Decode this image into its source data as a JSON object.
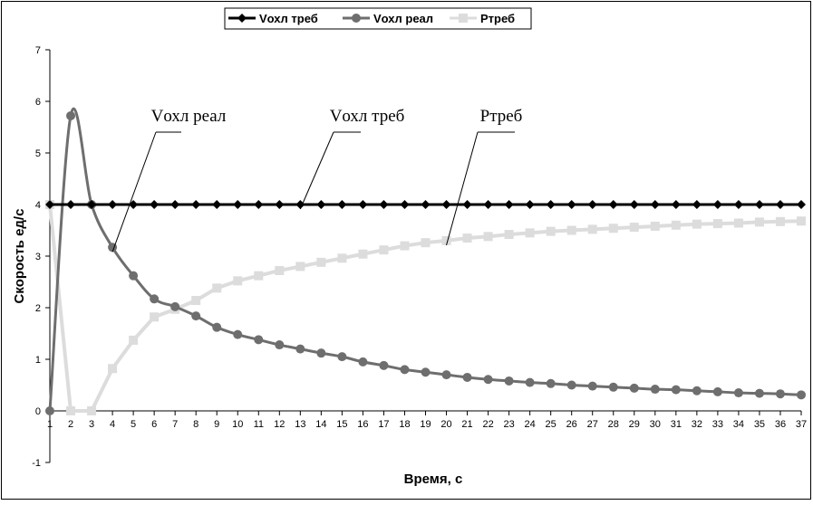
{
  "chart_data": {
    "type": "line",
    "xlabel": "Время, с",
    "ylabel": "Скорость ед/с",
    "ylim": [
      -1,
      7
    ],
    "yticks": [
      -1,
      0,
      1,
      2,
      3,
      4,
      5,
      6,
      7
    ],
    "x": [
      1,
      2,
      3,
      4,
      5,
      6,
      7,
      8,
      9,
      10,
      11,
      12,
      13,
      14,
      15,
      16,
      17,
      18,
      19,
      20,
      21,
      22,
      23,
      24,
      25,
      26,
      27,
      28,
      29,
      30,
      31,
      32,
      33,
      34,
      35,
      36,
      37
    ],
    "grid": false,
    "legend_position": "top",
    "series": [
      {
        "name": "Vохл треб",
        "color": "#000000",
        "marker": "diamond",
        "values": [
          4,
          4,
          4,
          4,
          4,
          4,
          4,
          4,
          4,
          4,
          4,
          4,
          4,
          4,
          4,
          4,
          4,
          4,
          4,
          4,
          4,
          4,
          4,
          4,
          4,
          4,
          4,
          4,
          4,
          4,
          4,
          4,
          4,
          4,
          4,
          4,
          4
        ]
      },
      {
        "name": "Vохл реал",
        "color": "#6e6e6e",
        "marker": "circle",
        "values": [
          0,
          5.72,
          4.0,
          3.17,
          2.62,
          2.17,
          2.02,
          1.84,
          1.62,
          1.48,
          1.38,
          1.28,
          1.2,
          1.12,
          1.05,
          0.95,
          0.88,
          0.8,
          0.75,
          0.7,
          0.65,
          0.61,
          0.58,
          0.55,
          0.53,
          0.5,
          0.48,
          0.46,
          0.44,
          0.42,
          0.41,
          0.39,
          0.37,
          0.35,
          0.34,
          0.33,
          0.31
        ]
      },
      {
        "name": "Ртреб",
        "color": "#dcdcdc",
        "marker": "square",
        "values": [
          4,
          0,
          0,
          0.82,
          1.37,
          1.82,
          1.97,
          2.14,
          2.38,
          2.52,
          2.62,
          2.72,
          2.8,
          2.88,
          2.96,
          3.04,
          3.12,
          3.2,
          3.26,
          3.3,
          3.35,
          3.38,
          3.42,
          3.45,
          3.48,
          3.5,
          3.52,
          3.54,
          3.56,
          3.58,
          3.6,
          3.62,
          3.63,
          3.64,
          3.66,
          3.67,
          3.68
        ]
      }
    ],
    "annotations": [
      {
        "text": "Vохл реал",
        "series": 1,
        "point_index": 3
      },
      {
        "text": "Vохл треб",
        "series": 0,
        "point_index": 12
      },
      {
        "text": "Ртреб",
        "series": 2,
        "point_index": 19
      }
    ]
  }
}
